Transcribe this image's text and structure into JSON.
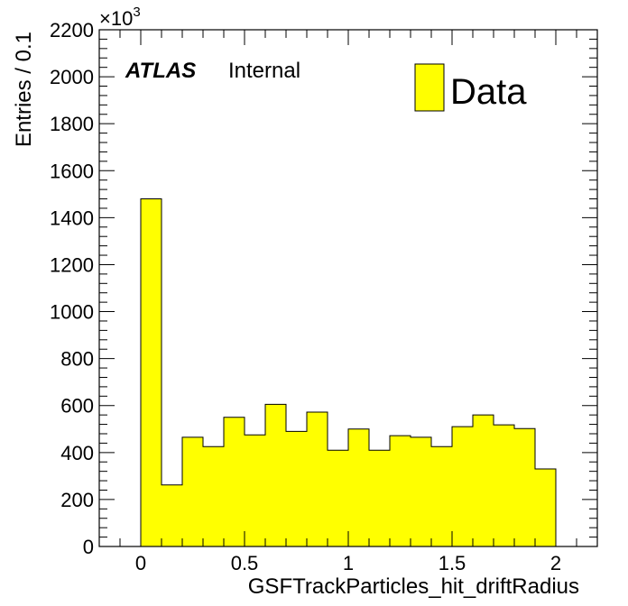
{
  "chart_data": {
    "type": "bar",
    "style": "histogram",
    "xlabel": "GSFTrackParticles_hit_driftRadius",
    "ylabel": "Entries / 0.1",
    "y_multiplier_base": "×10",
    "y_multiplier_exp": "3",
    "xlim": [
      -0.2,
      2.2
    ],
    "ylim": [
      0,
      2200
    ],
    "x_ticks": [
      "0",
      "0.5",
      "1",
      "1.5",
      "2"
    ],
    "x_tick_values": [
      0,
      0.5,
      1,
      1.5,
      2
    ],
    "y_ticks": [
      "0",
      "200",
      "400",
      "600",
      "800",
      "1000",
      "1200",
      "1400",
      "1600",
      "1800",
      "2000",
      "2200"
    ],
    "y_tick_values": [
      0,
      200,
      400,
      600,
      800,
      1000,
      1200,
      1400,
      1600,
      1800,
      2000,
      2200
    ],
    "bin_edges": [
      0,
      0.1,
      0.2,
      0.3,
      0.4,
      0.5,
      0.6,
      0.7,
      0.8,
      0.9,
      1.0,
      1.1,
      1.2,
      1.3,
      1.4,
      1.5,
      1.6,
      1.7,
      1.8,
      1.9,
      2.0
    ],
    "series": [
      {
        "name": "Data",
        "color": "#ffff00",
        "values": [
          1480,
          262,
          465,
          425,
          550,
          475,
          605,
          490,
          572,
          410,
          500,
          410,
          472,
          465,
          425,
          510,
          560,
          518,
          502,
          330
        ]
      }
    ],
    "legend": {
      "position": "top-right"
    },
    "annotation": {
      "atlas": "ATLAS",
      "label": "Internal"
    },
    "grid": false
  }
}
